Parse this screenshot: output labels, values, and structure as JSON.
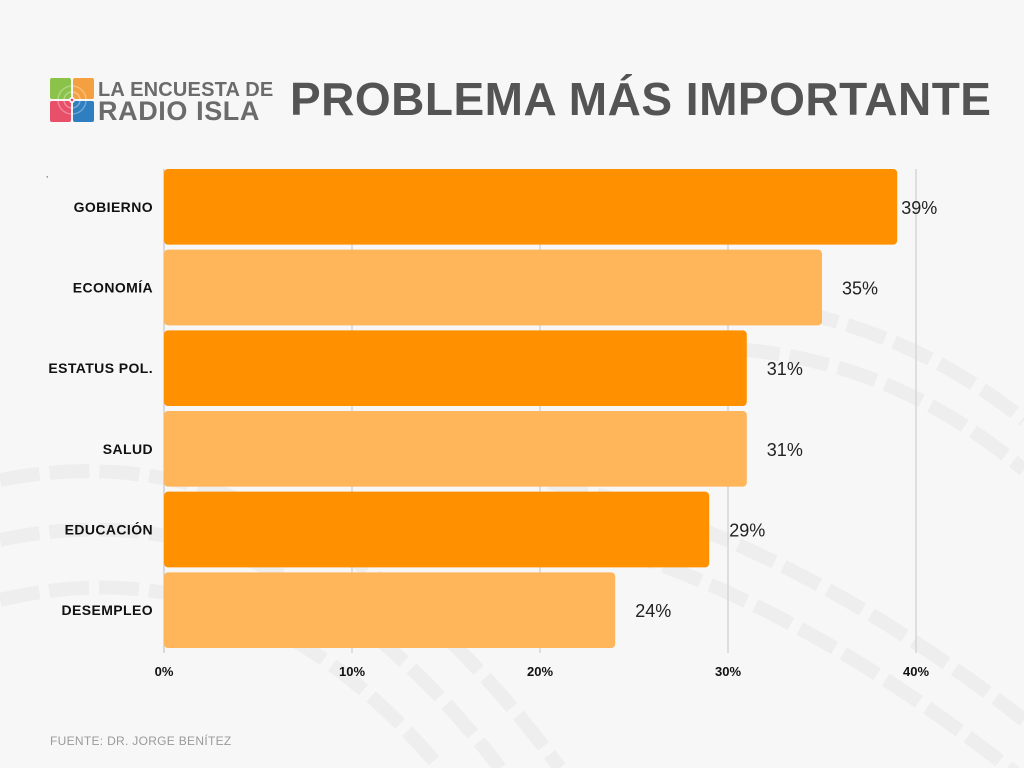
{
  "header": {
    "logo": {
      "icon": "radio-isla-logo-icon",
      "line1": "LA ENCUESTA DE",
      "line2": "RADIO ISLA",
      "colors": [
        "#8bc34a",
        "#f5a040",
        "#e8506a",
        "#2f7fc0"
      ]
    },
    "title": "PROBLEMA MÁS IMPORTANTE"
  },
  "stray_mark": ",",
  "footer": {
    "source": "FUENTE: DR. JORGE BENÍTEZ"
  },
  "colors": {
    "bar_dark": "#ff9100",
    "bar_light": "#ffb55a",
    "grid": "#d6d6d6",
    "label": "#111111",
    "value_label": "#222222"
  },
  "chart_data": {
    "type": "bar",
    "orientation": "horizontal",
    "title": "PROBLEMA MÁS IMPORTANTE",
    "xlabel": "",
    "ylabel": "",
    "categories": [
      "GOBIERNO",
      "ECONOMÍA",
      "ESTATUS POL.",
      "SALUD",
      "EDUCACIÓN",
      "DESEMPLEO"
    ],
    "values": [
      39,
      35,
      31,
      31,
      29,
      24
    ],
    "value_labels": [
      "39%",
      "35%",
      "31%",
      "31%",
      "29%",
      "24%"
    ],
    "bar_color_pattern": [
      "dark",
      "light",
      "dark",
      "light",
      "dark",
      "light"
    ],
    "xlim": [
      0,
      40
    ],
    "x_ticks": [
      0,
      10,
      20,
      30,
      40
    ],
    "x_tick_labels": [
      "0%",
      "10%",
      "20%",
      "30%",
      "40%"
    ],
    "grid": "vertical",
    "legend": "none",
    "source": "FUENTE: DR. JORGE BENÍTEZ"
  }
}
